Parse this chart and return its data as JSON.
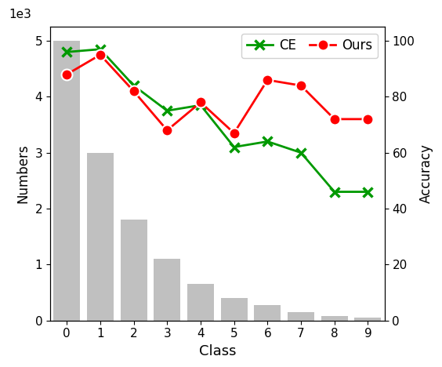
{
  "classes": [
    0,
    1,
    2,
    3,
    4,
    5,
    6,
    7,
    8,
    9
  ],
  "bar_counts": [
    5000,
    3000,
    1800,
    1100,
    650,
    400,
    270,
    150,
    80,
    50
  ],
  "ce_accuracy": [
    96,
    97,
    84,
    75,
    77,
    62,
    64,
    60,
    46,
    46
  ],
  "ours_accuracy": [
    88,
    95,
    82,
    68,
    78,
    67,
    86,
    84,
    72,
    72
  ],
  "bar_color": "#c0c0c0",
  "ce_color": "#009900",
  "ours_color": "#ff0000",
  "xlabel": "Class",
  "ylabel_left": "Numbers",
  "ylabel_right": "Accuracy",
  "ylim_left": [
    0,
    5250
  ],
  "ylim_right": [
    0,
    105
  ],
  "yticks_left": [
    0,
    1000,
    2000,
    3000,
    4000,
    5000
  ],
  "yticks_right": [
    0,
    20,
    40,
    60,
    80,
    100
  ],
  "legend_labels": [
    "CE",
    "Ours"
  ],
  "figsize": [
    5.64,
    4.68
  ],
  "dpi": 100
}
